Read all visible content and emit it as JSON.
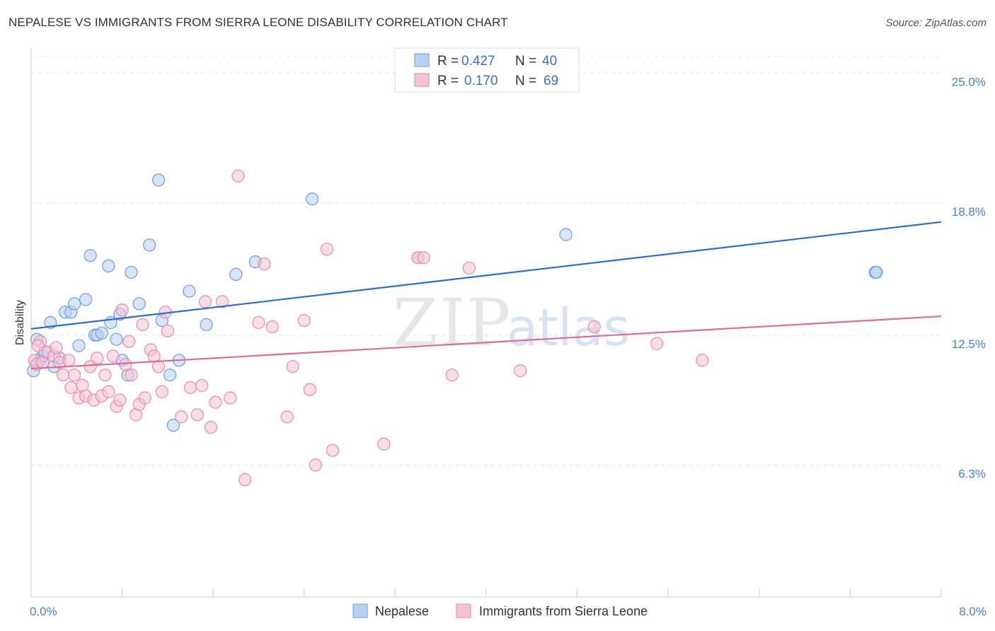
{
  "chart_data": {
    "type": "scatter",
    "title": "NEPALESE VS IMMIGRANTS FROM SIERRA LEONE DISABILITY CORRELATION CHART",
    "source": "Source: ZipAtlas.com",
    "ylabel": "Disability",
    "xlim": [
      0,
      8
    ],
    "ylim": [
      0,
      26.2
    ],
    "x_tick_labels": {
      "left": "0.0%",
      "right": "8.0%"
    },
    "y_ticks": [
      {
        "value": 25.0,
        "label": "25.0%"
      },
      {
        "value": 18.8,
        "label": "18.8%"
      },
      {
        "value": 12.5,
        "label": "12.5%"
      },
      {
        "value": 6.3,
        "label": "6.3%"
      }
    ],
    "watermark": {
      "zip": "ZIP",
      "atlas": "atlas"
    },
    "legend": {
      "rows": [
        {
          "r_label": "R =",
          "r_value": "0.427",
          "n_label": "N =",
          "n_value": "40"
        },
        {
          "r_label": "R =",
          "r_value": "0.170",
          "n_label": "N =",
          "n_value": "69"
        }
      ]
    },
    "series": [
      {
        "name": "Nepalese",
        "color": "#6b9de0",
        "fill": "#b8d0f2",
        "line_color": "#2a6fd0",
        "trend": [
          [
            0,
            12.8
          ],
          [
            8,
            17.9
          ]
        ],
        "points": [
          [
            0.02,
            10.8
          ],
          [
            0.05,
            12.3
          ],
          [
            0.08,
            11.3
          ],
          [
            0.1,
            11.5
          ],
          [
            0.12,
            11.7
          ],
          [
            0.17,
            13.1
          ],
          [
            0.2,
            11.0
          ],
          [
            0.25,
            11.4
          ],
          [
            0.3,
            13.6
          ],
          [
            0.35,
            13.6
          ],
          [
            0.38,
            14.0
          ],
          [
            0.42,
            12.0
          ],
          [
            0.48,
            14.2
          ],
          [
            0.52,
            16.3
          ],
          [
            0.56,
            12.5
          ],
          [
            0.58,
            12.5
          ],
          [
            0.62,
            12.6
          ],
          [
            0.68,
            15.8
          ],
          [
            0.7,
            13.1
          ],
          [
            0.75,
            12.3
          ],
          [
            0.78,
            13.5
          ],
          [
            0.8,
            11.3
          ],
          [
            0.85,
            10.6
          ],
          [
            0.88,
            15.5
          ],
          [
            0.95,
            14.0
          ],
          [
            1.04,
            16.8
          ],
          [
            1.12,
            19.9
          ],
          [
            1.15,
            13.2
          ],
          [
            1.22,
            10.6
          ],
          [
            1.25,
            8.2
          ],
          [
            1.3,
            11.3
          ],
          [
            1.39,
            14.6
          ],
          [
            1.54,
            13.0
          ],
          [
            1.8,
            15.4
          ],
          [
            1.97,
            16.0
          ],
          [
            2.47,
            19.0
          ],
          [
            3.4,
            16.2
          ],
          [
            4.7,
            17.3
          ],
          [
            7.42,
            15.5
          ],
          [
            7.43,
            15.5
          ]
        ]
      },
      {
        "name": "Immigrants from Sierra Leone",
        "color": "#e88aaa",
        "fill": "#f5c3d4",
        "line_color": "#e06a94",
        "trend": [
          [
            0,
            10.9
          ],
          [
            8,
            13.4
          ]
        ],
        "points": [
          [
            0.03,
            11.3
          ],
          [
            0.05,
            11.1
          ],
          [
            0.08,
            12.2
          ],
          [
            0.1,
            11.2
          ],
          [
            0.15,
            11.7
          ],
          [
            0.2,
            11.5
          ],
          [
            0.22,
            11.9
          ],
          [
            0.25,
            11.2
          ],
          [
            0.28,
            10.6
          ],
          [
            0.33,
            11.3
          ],
          [
            0.35,
            10.0
          ],
          [
            0.38,
            10.6
          ],
          [
            0.42,
            9.5
          ],
          [
            0.45,
            10.1
          ],
          [
            0.48,
            9.6
          ],
          [
            0.52,
            11.0
          ],
          [
            0.55,
            9.4
          ],
          [
            0.58,
            11.4
          ],
          [
            0.62,
            9.6
          ],
          [
            0.65,
            10.6
          ],
          [
            0.68,
            9.8
          ],
          [
            0.72,
            11.5
          ],
          [
            0.75,
            9.1
          ],
          [
            0.78,
            9.4
          ],
          [
            0.8,
            13.7
          ],
          [
            0.83,
            11.1
          ],
          [
            0.86,
            12.2
          ],
          [
            0.88,
            10.6
          ],
          [
            0.92,
            8.7
          ],
          [
            0.95,
            9.2
          ],
          [
            0.98,
            13.0
          ],
          [
            1.0,
            9.5
          ],
          [
            1.05,
            11.8
          ],
          [
            1.08,
            11.5
          ],
          [
            1.12,
            11.0
          ],
          [
            1.15,
            9.8
          ],
          [
            1.18,
            13.6
          ],
          [
            1.2,
            12.7
          ],
          [
            1.32,
            8.6
          ],
          [
            1.4,
            10.0
          ],
          [
            1.46,
            8.7
          ],
          [
            1.5,
            10.1
          ],
          [
            1.53,
            14.1
          ],
          [
            1.58,
            8.1
          ],
          [
            1.62,
            9.3
          ],
          [
            1.68,
            14.1
          ],
          [
            1.75,
            9.5
          ],
          [
            1.82,
            20.1
          ],
          [
            1.88,
            5.6
          ],
          [
            2.0,
            13.1
          ],
          [
            2.05,
            15.9
          ],
          [
            2.12,
            12.9
          ],
          [
            2.25,
            8.6
          ],
          [
            2.3,
            11.0
          ],
          [
            2.4,
            13.2
          ],
          [
            2.45,
            9.9
          ],
          [
            2.5,
            6.3
          ],
          [
            2.6,
            16.6
          ],
          [
            2.65,
            7.0
          ],
          [
            3.1,
            7.3
          ],
          [
            3.4,
            16.2
          ],
          [
            3.45,
            16.2
          ],
          [
            3.7,
            10.6
          ],
          [
            3.85,
            15.7
          ],
          [
            4.3,
            10.8
          ],
          [
            4.95,
            12.9
          ],
          [
            5.5,
            12.1
          ],
          [
            5.9,
            11.3
          ],
          [
            0.06,
            12.0
          ]
        ]
      }
    ]
  }
}
